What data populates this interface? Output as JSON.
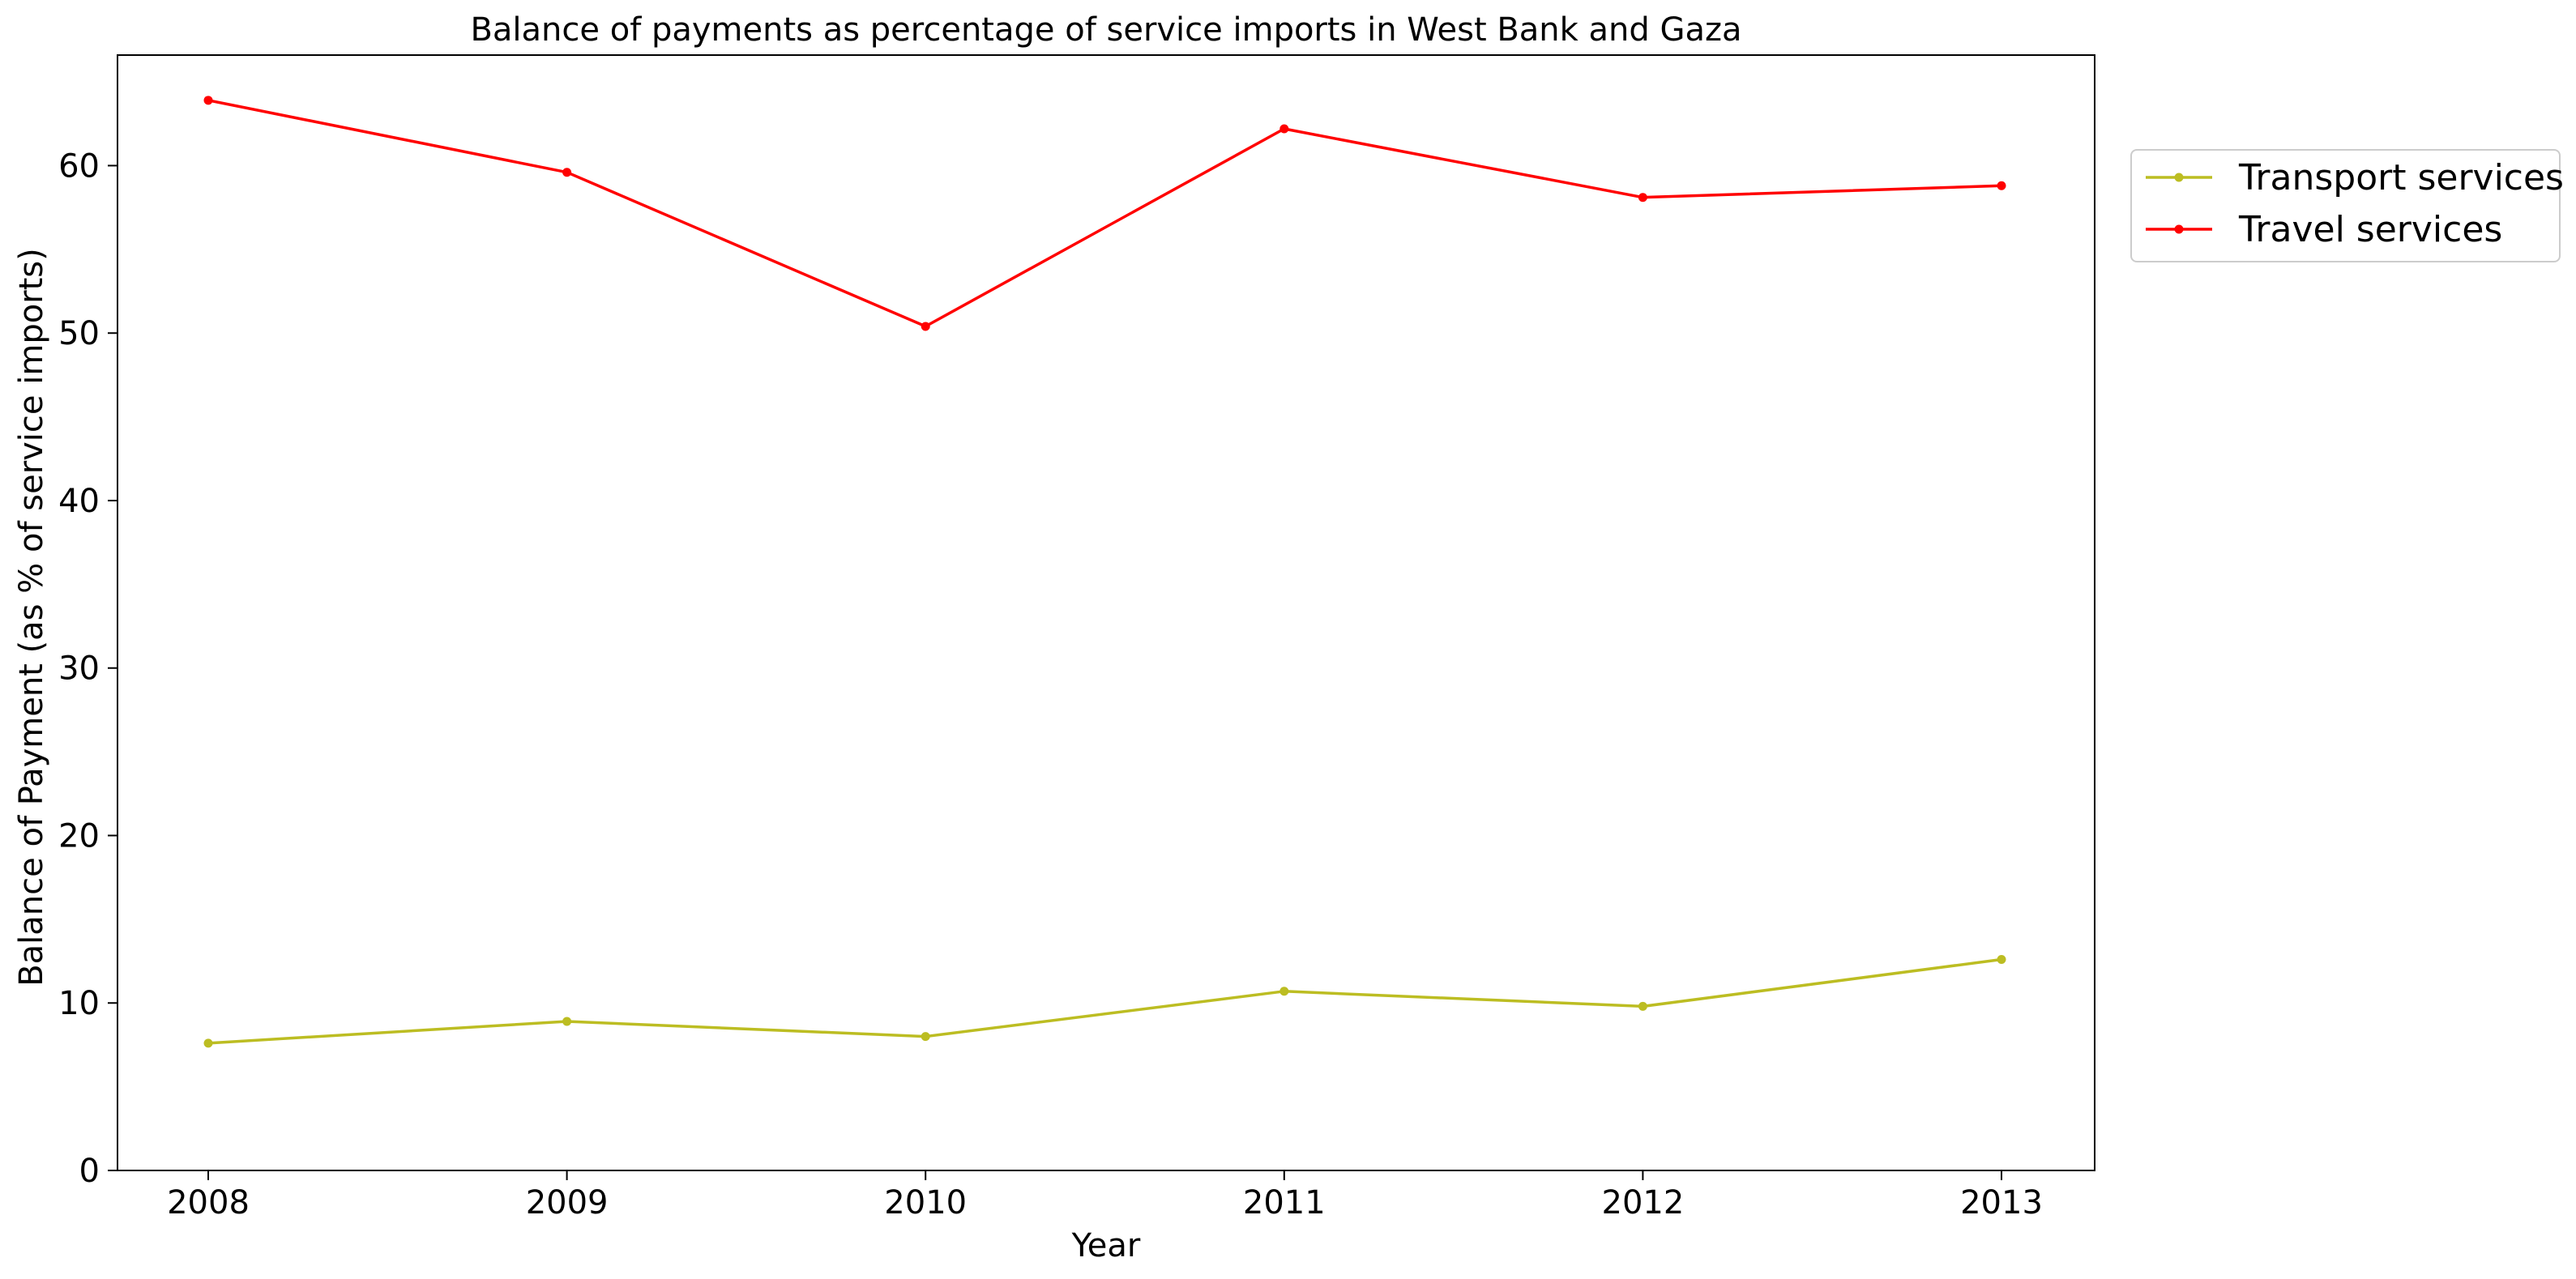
{
  "chart_data": {
    "type": "line",
    "title": "Balance of payments as percentage of service imports in West Bank and Gaza",
    "xlabel": "Year",
    "ylabel": "Balance of Payment (as % of service imports)",
    "x": [
      "2008",
      "2009",
      "2010",
      "2011",
      "2012",
      "2013"
    ],
    "ylim": [
      0,
      66.6
    ],
    "yticks": [
      0,
      10,
      20,
      30,
      40,
      50,
      60
    ],
    "series": [
      {
        "name": "Transport services",
        "color": "#bcbd22",
        "values": [
          7.6,
          8.9,
          8.0,
          10.7,
          9.8,
          12.6
        ]
      },
      {
        "name": "Travel services",
        "color": "#ff0000",
        "values": [
          63.9,
          59.6,
          50.4,
          62.2,
          58.1,
          58.8
        ]
      }
    ],
    "grid": false,
    "legend_position": "upper right, outside plot area"
  }
}
